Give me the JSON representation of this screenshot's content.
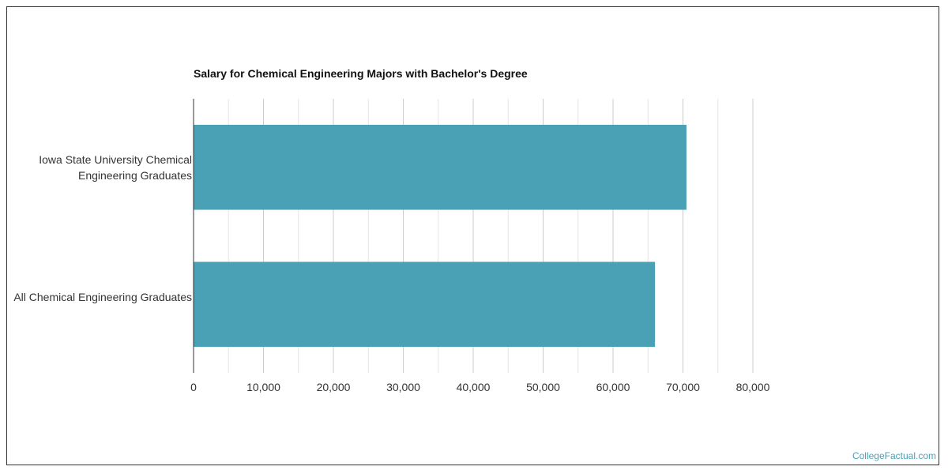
{
  "chart_data": {
    "type": "bar",
    "orientation": "horizontal",
    "title": "Salary for Chemical Engineering Majors with Bachelor's Degree",
    "categories": [
      "Iowa State University Chemical Engineering Graduates",
      "All Chemical Engineering Graduates"
    ],
    "values": [
      70500,
      66000
    ],
    "xlim": [
      0,
      80000
    ],
    "xticks": [
      0,
      10000,
      20000,
      30000,
      40000,
      50000,
      60000,
      70000,
      80000
    ],
    "xtick_labels": [
      "0",
      "10,000",
      "20,000",
      "30,000",
      "40,000",
      "50,000",
      "60,000",
      "70,000",
      "80,000"
    ],
    "xlabel": "",
    "ylabel": "",
    "grid": true,
    "bar_color": "#4aa0b5"
  },
  "footer": {
    "credit": "CollegeFactual.com"
  }
}
